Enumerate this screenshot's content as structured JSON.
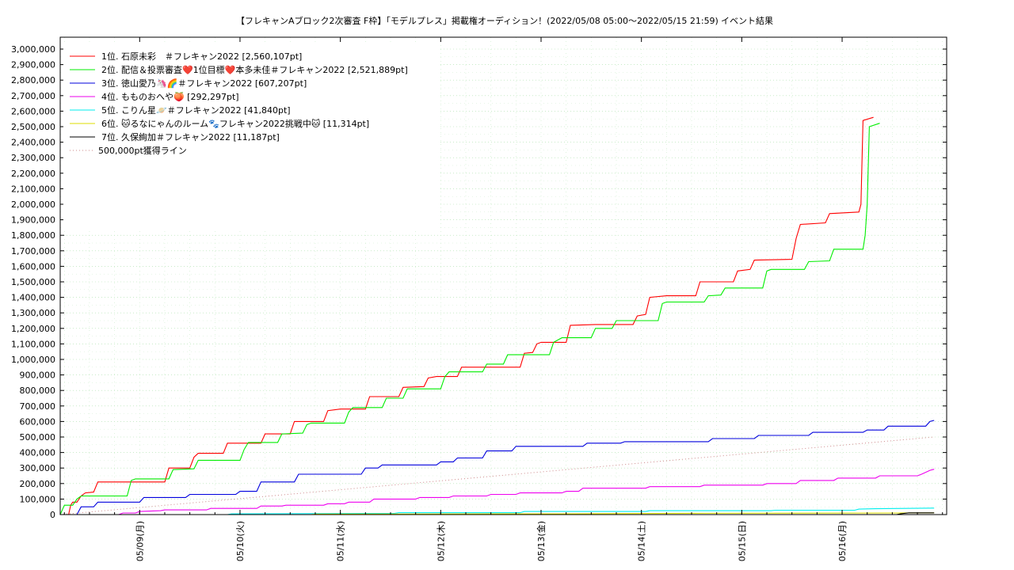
{
  "chart_data": {
    "type": "line",
    "title": "【フレキャンAブロック2次審査 F枠】「モデルプレス」掲載権オーディション！(2022/05/08 05:00～2022/05/15 21:59)",
    "subtitle": "イベント結果",
    "xlabel": "",
    "ylabel": "",
    "x_range": [
      "2022/05/08 05:00",
      "2022/05/16 05:00"
    ],
    "ylim": [
      0,
      3000000
    ],
    "y_ticks": [
      "0",
      "100,000",
      "200,000",
      "300,000",
      "400,000",
      "500,000",
      "600,000",
      "700,000",
      "800,000",
      "900,000",
      "1,000,000",
      "1,100,000",
      "1,200,000",
      "1,300,000",
      "1,400,000",
      "1,500,000",
      "1,600,000",
      "1,700,000",
      "1,800,000",
      "1,900,000",
      "2,000,000",
      "2,100,000",
      "2,200,000",
      "2,300,000",
      "2,400,000",
      "2,500,000",
      "2,600,000",
      "2,700,000",
      "2,800,000",
      "2,900,000",
      "3,000,000"
    ],
    "x_ticks": [
      {
        "label": "05/09(月)",
        "hours": 19
      },
      {
        "label": "05/10(火)",
        "hours": 43
      },
      {
        "label": "05/11(水)",
        "hours": 67
      },
      {
        "label": "05/12(木)",
        "hours": 91
      },
      {
        "label": "05/13(金)",
        "hours": 115
      },
      {
        "label": "05/14(土)",
        "hours": 139
      },
      {
        "label": "05/15(日)",
        "hours": 163
      },
      {
        "label": "05/16(月)",
        "hours": 187
      }
    ],
    "grid": true,
    "legend_position": "top-left",
    "series": [
      {
        "name": "1位. 石原未彩　＃フレキャン2022 [2,560,107pt]",
        "color": "#ff0000",
        "points": [
          [
            0,
            0
          ],
          [
            2,
            0
          ],
          [
            2.5,
            60000
          ],
          [
            3,
            80000
          ],
          [
            4,
            80000
          ],
          [
            5,
            120000
          ],
          [
            6,
            140000
          ],
          [
            8,
            145000
          ],
          [
            9,
            210000
          ],
          [
            25,
            210000
          ],
          [
            26,
            300000
          ],
          [
            31,
            300000
          ],
          [
            32,
            370000
          ],
          [
            33,
            395000
          ],
          [
            39,
            395000
          ],
          [
            40,
            460000
          ],
          [
            48,
            460000
          ],
          [
            49,
            520000
          ],
          [
            55,
            520000
          ],
          [
            56,
            600000
          ],
          [
            63,
            600000
          ],
          [
            64,
            670000
          ],
          [
            67,
            680000
          ],
          [
            73,
            680000
          ],
          [
            74,
            760000
          ],
          [
            81,
            760000
          ],
          [
            82,
            820000
          ],
          [
            87,
            825000
          ],
          [
            88,
            880000
          ],
          [
            90,
            890000
          ],
          [
            95,
            890000
          ],
          [
            96,
            950000
          ],
          [
            110,
            950000
          ],
          [
            111,
            1040000
          ],
          [
            113,
            1045000
          ],
          [
            114,
            1100000
          ],
          [
            115,
            1110000
          ],
          [
            121,
            1110000
          ],
          [
            122,
            1220000
          ],
          [
            128,
            1225000
          ],
          [
            137,
            1225000
          ],
          [
            138,
            1280000
          ],
          [
            140,
            1290000
          ],
          [
            141,
            1400000
          ],
          [
            145,
            1410000
          ],
          [
            152,
            1410000
          ],
          [
            153,
            1500000
          ],
          [
            161,
            1500000
          ],
          [
            162,
            1570000
          ],
          [
            165,
            1580000
          ],
          [
            166,
            1640000
          ],
          [
            175,
            1645000
          ],
          [
            176,
            1780000
          ],
          [
            177,
            1870000
          ],
          [
            183,
            1880000
          ],
          [
            184,
            1940000
          ],
          [
            191,
            1950000
          ],
          [
            191.5,
            2000000
          ],
          [
            192,
            2540000
          ],
          [
            194.5,
            2560107
          ]
        ]
      },
      {
        "name": "2位. 配信＆投票審査❤️1位目標❤️本多未佳＃フレキャン2022 [2,521,889pt]",
        "color": "#00ee00",
        "points": [
          [
            0,
            0
          ],
          [
            1,
            60000
          ],
          [
            3,
            60000
          ],
          [
            4,
            100000
          ],
          [
            5,
            120000
          ],
          [
            16,
            120000
          ],
          [
            17,
            220000
          ],
          [
            18,
            230000
          ],
          [
            26,
            230000
          ],
          [
            27,
            290000
          ],
          [
            32,
            295000
          ],
          [
            33,
            350000
          ],
          [
            43,
            350000
          ],
          [
            44,
            420000
          ],
          [
            45,
            465000
          ],
          [
            52,
            465000
          ],
          [
            53,
            520000
          ],
          [
            58,
            525000
          ],
          [
            59,
            580000
          ],
          [
            60,
            590000
          ],
          [
            68,
            590000
          ],
          [
            69,
            660000
          ],
          [
            70,
            690000
          ],
          [
            77,
            690000
          ],
          [
            78,
            750000
          ],
          [
            82,
            750000
          ],
          [
            83,
            810000
          ],
          [
            91,
            810000
          ],
          [
            92,
            890000
          ],
          [
            93,
            920000
          ],
          [
            101,
            920000
          ],
          [
            102,
            970000
          ],
          [
            106,
            970000
          ],
          [
            107,
            1030000
          ],
          [
            117,
            1030000
          ],
          [
            118,
            1110000
          ],
          [
            120,
            1140000
          ],
          [
            127,
            1140000
          ],
          [
            128,
            1200000
          ],
          [
            132,
            1200000
          ],
          [
            133,
            1250000
          ],
          [
            143,
            1250000
          ],
          [
            144,
            1360000
          ],
          [
            145,
            1370000
          ],
          [
            154,
            1370000
          ],
          [
            155,
            1410000
          ],
          [
            158,
            1415000
          ],
          [
            159,
            1460000
          ],
          [
            168,
            1460000
          ],
          [
            169,
            1570000
          ],
          [
            170,
            1580000
          ],
          [
            178,
            1580000
          ],
          [
            179,
            1630000
          ],
          [
            184,
            1635000
          ],
          [
            185,
            1710000
          ],
          [
            192,
            1710000
          ],
          [
            192.5,
            1800000
          ],
          [
            193,
            2000000
          ],
          [
            193.5,
            2500000
          ],
          [
            196,
            2521889
          ]
        ]
      },
      {
        "name": "3位. 徳山愛乃🦄🌈＃フレキャン2022 [607,207pt]",
        "color": "#0000dd",
        "points": [
          [
            0,
            0
          ],
          [
            4,
            0
          ],
          [
            5,
            50000
          ],
          [
            8,
            50000
          ],
          [
            9,
            80000
          ],
          [
            19,
            80000
          ],
          [
            20,
            110000
          ],
          [
            30,
            110000
          ],
          [
            31,
            130000
          ],
          [
            42,
            130000
          ],
          [
            43,
            150000
          ],
          [
            47,
            150000
          ],
          [
            48,
            210000
          ],
          [
            56,
            210000
          ],
          [
            57,
            260000
          ],
          [
            72,
            260000
          ],
          [
            73,
            300000
          ],
          [
            76,
            300000
          ],
          [
            77,
            320000
          ],
          [
            90,
            320000
          ],
          [
            91,
            340000
          ],
          [
            94,
            340000
          ],
          [
            95,
            365000
          ],
          [
            101,
            365000
          ],
          [
            102,
            410000
          ],
          [
            108,
            410000
          ],
          [
            109,
            440000
          ],
          [
            125,
            440000
          ],
          [
            126,
            460000
          ],
          [
            134,
            460000
          ],
          [
            135,
            470000
          ],
          [
            155,
            470000
          ],
          [
            156,
            490000
          ],
          [
            166,
            490000
          ],
          [
            167,
            510000
          ],
          [
            179,
            510000
          ],
          [
            180,
            530000
          ],
          [
            192,
            530000
          ],
          [
            193,
            545000
          ],
          [
            197,
            545000
          ],
          [
            198,
            570000
          ],
          [
            207,
            570000
          ],
          [
            208,
            600000
          ],
          [
            209,
            607207
          ]
        ]
      },
      {
        "name": "4位. もものおへや🍑 [292,297pt]",
        "color": "#ee00ee",
        "points": [
          [
            0,
            0
          ],
          [
            14,
            0
          ],
          [
            15,
            10000
          ],
          [
            18,
            10000
          ],
          [
            19,
            20000
          ],
          [
            24,
            25000
          ],
          [
            25,
            30000
          ],
          [
            35,
            30000
          ],
          [
            36,
            40000
          ],
          [
            47,
            40000
          ],
          [
            48,
            55000
          ],
          [
            53,
            55000
          ],
          [
            54,
            60000
          ],
          [
            63,
            60000
          ],
          [
            64,
            70000
          ],
          [
            68,
            70000
          ],
          [
            69,
            80000
          ],
          [
            74,
            80000
          ],
          [
            75,
            100000
          ],
          [
            85,
            100000
          ],
          [
            86,
            110000
          ],
          [
            93,
            110000
          ],
          [
            94,
            120000
          ],
          [
            102,
            120000
          ],
          [
            103,
            130000
          ],
          [
            109,
            130000
          ],
          [
            110,
            140000
          ],
          [
            120,
            140000
          ],
          [
            121,
            150000
          ],
          [
            124,
            150000
          ],
          [
            125,
            170000
          ],
          [
            140,
            170000
          ],
          [
            141,
            180000
          ],
          [
            153,
            180000
          ],
          [
            154,
            190000
          ],
          [
            168,
            190000
          ],
          [
            169,
            200000
          ],
          [
            176,
            200000
          ],
          [
            177,
            220000
          ],
          [
            185,
            220000
          ],
          [
            186,
            235000
          ],
          [
            195,
            235000
          ],
          [
            196,
            250000
          ],
          [
            205,
            250000
          ],
          [
            206,
            260000
          ],
          [
            208,
            285000
          ],
          [
            209,
            292297
          ]
        ]
      },
      {
        "name": "5位. こりん星🪐＃フレキャン2022 [41,840pt]",
        "color": "#00eeee",
        "points": [
          [
            0,
            0
          ],
          [
            40,
            0
          ],
          [
            41,
            5000
          ],
          [
            80,
            8000
          ],
          [
            81,
            12000
          ],
          [
            110,
            12000
          ],
          [
            111,
            20000
          ],
          [
            140,
            20000
          ],
          [
            141,
            25000
          ],
          [
            170,
            25000
          ],
          [
            171,
            28000
          ],
          [
            190,
            28000
          ],
          [
            191,
            35000
          ],
          [
            195,
            38000
          ],
          [
            209,
            41840
          ]
        ]
      },
      {
        "name": "6位. 🐱るなにゃんのルーム🐾フレキャン2022挑戦中🐱 [11,314pt]",
        "color": "#dddd00",
        "points": [
          [
            0,
            0
          ],
          [
            60,
            0
          ],
          [
            61,
            3000
          ],
          [
            120,
            5000
          ],
          [
            150,
            8000
          ],
          [
            200,
            10000
          ],
          [
            209,
            11314
          ]
        ]
      },
      {
        "name": "7位. 久保絢加＃フレキャン2022 [11,187pt]",
        "color": "#000000",
        "points": [
          [
            0,
            0
          ],
          [
            200,
            0
          ],
          [
            201,
            5000
          ],
          [
            203,
            11187
          ],
          [
            209,
            11187
          ]
        ]
      },
      {
        "name": "500,000pt獲得ライン",
        "color": "#cc8888",
        "dotted": true,
        "points": [
          [
            0,
            0
          ],
          [
            209,
            500000
          ]
        ]
      }
    ]
  }
}
